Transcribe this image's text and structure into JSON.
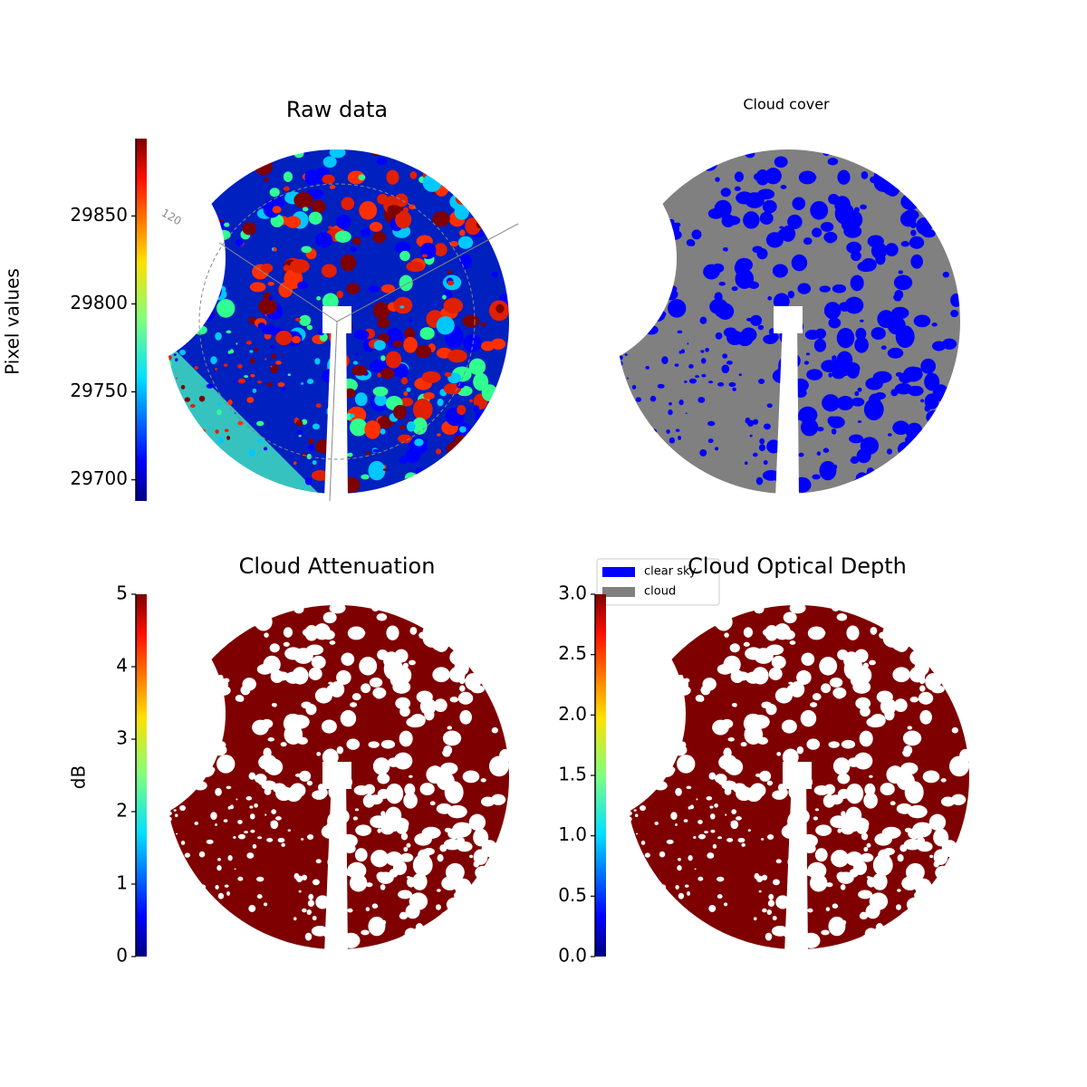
{
  "chart_data": [
    {
      "type": "image",
      "title": "Raw data",
      "colormap": "jet",
      "clabel": "Pixel values",
      "clim": [
        29688,
        29894
      ],
      "cticks": [
        29700,
        29750,
        29800,
        29850
      ],
      "annotations": [
        "120"
      ]
    },
    {
      "type": "image",
      "title": "Cloud cover",
      "legend": [
        {
          "name": "clear sky",
          "color": "#0000ff"
        },
        {
          "name": "cloud",
          "color": "#808080"
        }
      ]
    },
    {
      "type": "image",
      "title": "Cloud Attenuation",
      "colormap": "jet",
      "clabel": "dB",
      "clim": [
        0,
        5
      ],
      "cticks": [
        0,
        1,
        2,
        3,
        4,
        5
      ]
    },
    {
      "type": "image",
      "title": "Cloud Optical Depth",
      "colormap": "jet",
      "clim": [
        0,
        3
      ],
      "cticks": [
        {
          "value": 0,
          "label": "0.0"
        },
        {
          "value": 0.5,
          "label": "0.5"
        },
        {
          "value": 1,
          "label": "1.0"
        },
        {
          "value": 1.5,
          "label": "1.5"
        },
        {
          "value": 2,
          "label": "2.0"
        },
        {
          "value": 2.5,
          "label": "2.5"
        },
        {
          "value": 3,
          "label": "3.0"
        }
      ]
    }
  ]
}
